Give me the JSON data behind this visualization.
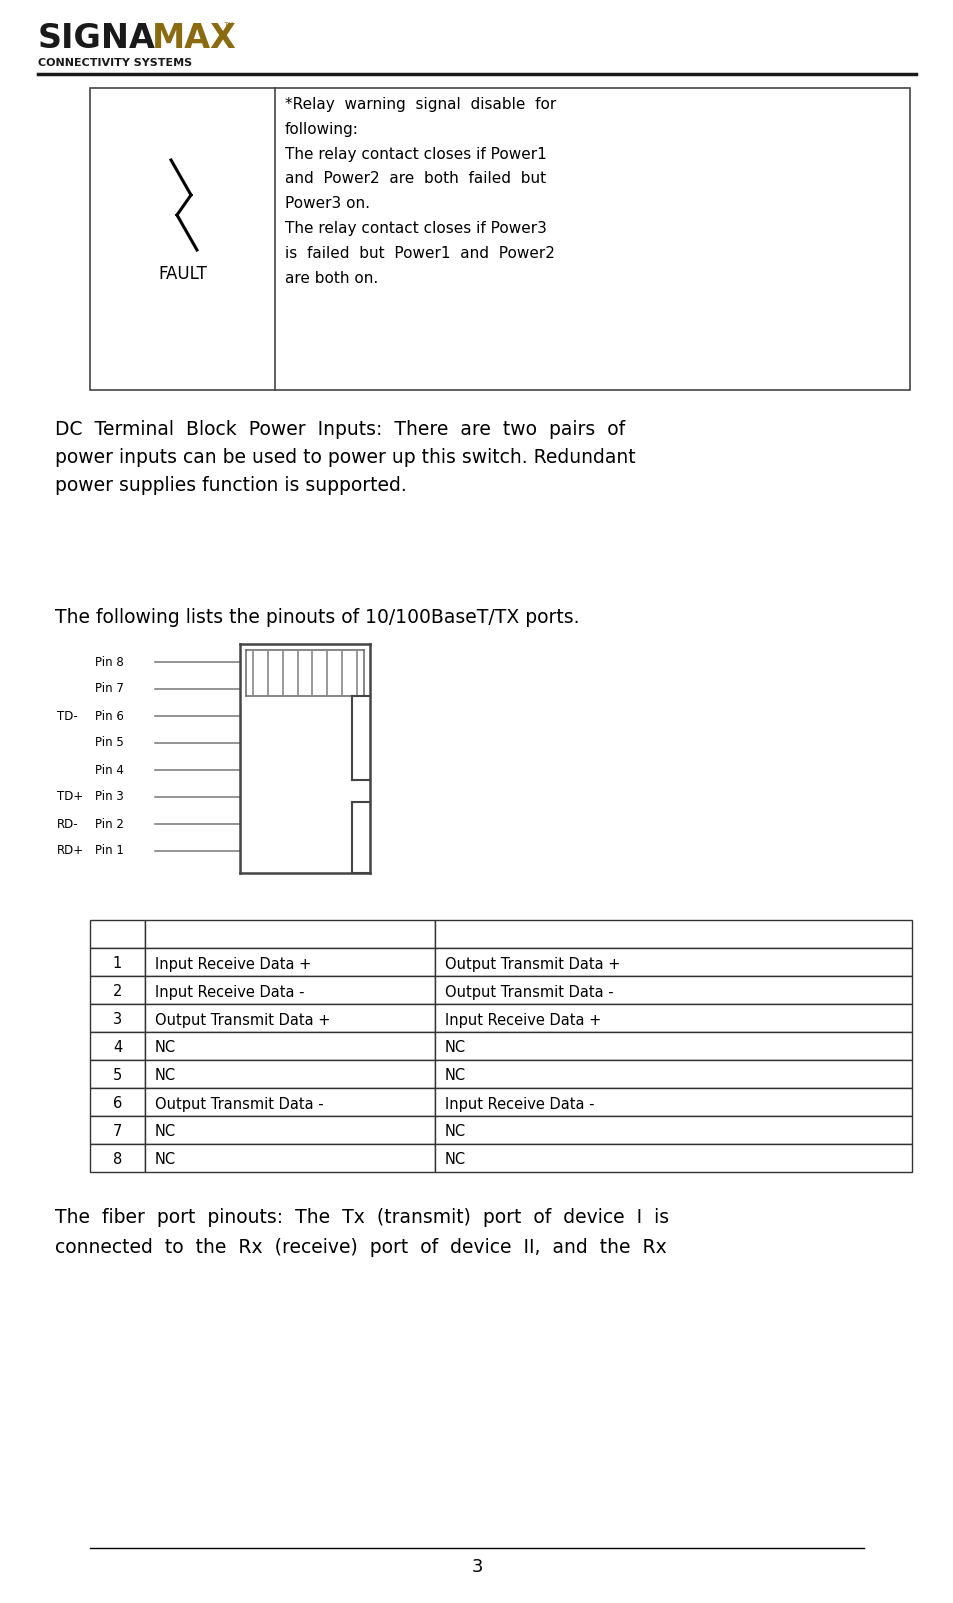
{
  "bg_color": "#ffffff",
  "logo_signa_color": "#1a1a1a",
  "logo_max_color": "#8B6B10",
  "fault_text_lines": [
    "*Relay  warning  signal  disable  for",
    "following:",
    "The relay contact closes if Power1",
    "and  Power2  are  both  failed  but",
    "Power3 on.",
    "The relay contact closes if Power3",
    "is  failed  but  Power1  and  Power2",
    "are both on."
  ],
  "fault_label": "FAULT",
  "dc_text_lines": [
    "DC  Terminal  Block  Power  Inputs:  There  are  two  pairs  of",
    "power inputs can be used to power up this switch. Redundant",
    "power supplies function is supported."
  ],
  "pinout_intro": "The following lists the pinouts of 10/100BaseT/TX ports.",
  "pin_labels": [
    "Pin 8",
    "Pin 7",
    "Pin 6",
    "Pin 5",
    "Pin 4",
    "Pin 3",
    "Pin 2",
    "Pin 1"
  ],
  "pin_side_labels": [
    "",
    "",
    "TD-",
    "",
    "",
    "TD+",
    "RD-",
    "RD+"
  ],
  "table_rows": [
    [
      "1",
      "Input Receive Data +",
      "Output Transmit Data +"
    ],
    [
      "2",
      "Input Receive Data -",
      "Output Transmit Data -"
    ],
    [
      "3",
      "Output Transmit Data +",
      "Input Receive Data +"
    ],
    [
      "4",
      "NC",
      "NC"
    ],
    [
      "5",
      "NC",
      "NC"
    ],
    [
      "6",
      "Output Transmit Data -",
      "Input Receive Data -"
    ],
    [
      "7",
      "NC",
      "NC"
    ],
    [
      "8",
      "NC",
      "NC"
    ]
  ],
  "fiber_text_lines": [
    "The  fiber  port  pinouts:  The  Tx  (transmit)  port  of  device  I  is",
    "connected  to  the  Rx  (receive)  port  of  device  II,  and  the  Rx"
  ],
  "page_number": "3"
}
